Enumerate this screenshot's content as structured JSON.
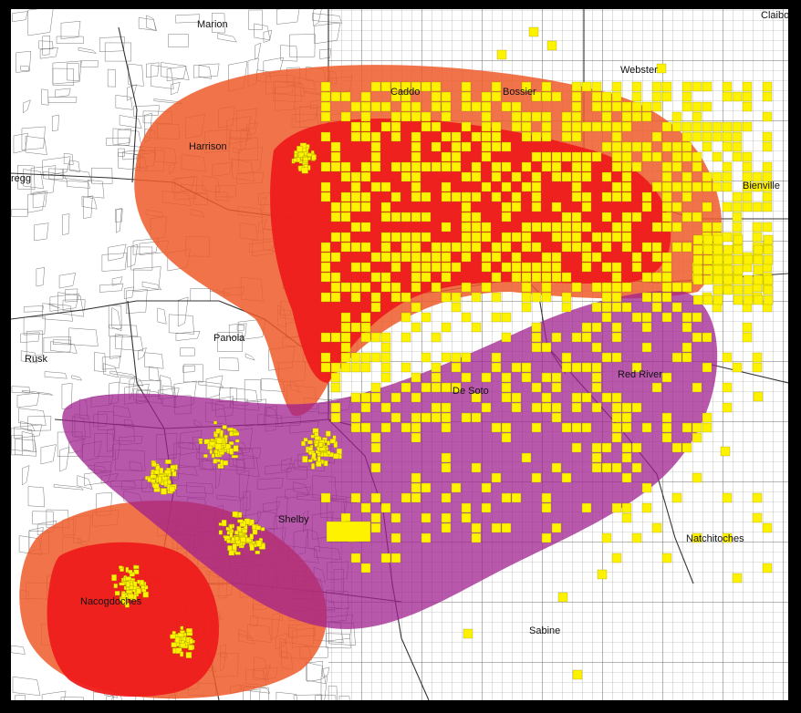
{
  "map": {
    "counties": [
      {
        "id": "marion",
        "name": "Marion"
      },
      {
        "id": "claiborne",
        "name": "Claibo"
      },
      {
        "id": "caddo",
        "name": "Caddo"
      },
      {
        "id": "bossier",
        "name": "Bossier"
      },
      {
        "id": "webster",
        "name": "Webster"
      },
      {
        "id": "harrison",
        "name": "Harrison"
      },
      {
        "id": "gregg",
        "name": "regg"
      },
      {
        "id": "bienville",
        "name": "Bienville"
      },
      {
        "id": "panola",
        "name": "Panola"
      },
      {
        "id": "rusk",
        "name": "Rusk"
      },
      {
        "id": "red-river",
        "name": "Red River"
      },
      {
        "id": "de-soto",
        "name": "De Soto"
      },
      {
        "id": "shelby",
        "name": "Shelby"
      },
      {
        "id": "natchitoches",
        "name": "Natchitoches"
      },
      {
        "id": "nacogdoches",
        "name": "Nacogdoches"
      },
      {
        "id": "sabine",
        "name": "Sabine"
      }
    ],
    "colors": {
      "background": "#ffffff",
      "frame": "#000000",
      "grid": "#9a9a9a",
      "parcel_lines": "#7a7a7a",
      "county_lines": "#333333",
      "zone_orange": "#ef5a2a",
      "zone_red": "#ee1c1c",
      "zone_magenta": "#a0208f",
      "wells": "#fff200"
    }
  }
}
